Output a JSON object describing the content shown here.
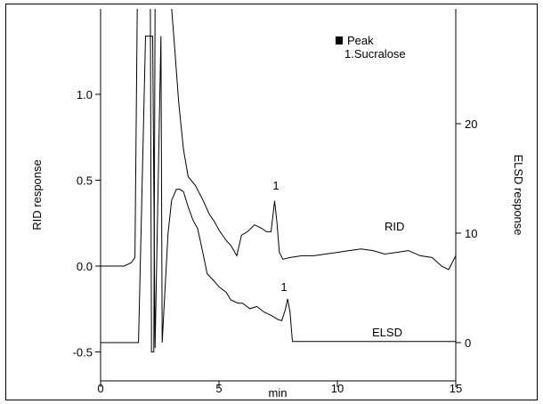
{
  "chart_data": {
    "type": "line",
    "x_axis": {
      "label": "min",
      "range": [
        0,
        15
      ],
      "ticks": [
        0,
        5,
        10,
        15
      ],
      "tick_labels": [
        "0",
        "5",
        "10",
        "15"
      ]
    },
    "y_left": {
      "label": "RID response",
      "range": [
        -0.6,
        1.4
      ],
      "ticks": [
        -0.5,
        0.0,
        0.5,
        1.0
      ],
      "tick_labels": [
        "-0.5",
        "0.0",
        "0.5",
        "1.0"
      ]
    },
    "y_right": {
      "label": "ELSD response",
      "ticks": [
        0,
        10,
        20
      ],
      "tick_labels": [
        "0",
        "10",
        "20"
      ]
    },
    "legend": {
      "title": "Peak",
      "entries": [
        "1.Sucralose"
      ]
    },
    "series": [
      {
        "name": "RID",
        "axis": "left",
        "x": [
          0,
          1.0,
          1.3,
          1.45,
          1.55,
          1.65,
          2.0,
          2.1,
          2.15,
          2.25,
          2.3,
          2.5,
          2.65,
          3.0,
          3.1,
          3.3,
          3.5,
          3.7,
          4.0,
          4.3,
          4.6,
          4.8,
          5.0,
          5.3,
          5.5,
          5.75,
          5.95,
          6.2,
          6.5,
          6.8,
          7.0,
          7.2,
          7.35,
          7.45,
          7.55,
          7.7,
          8.0,
          8.5,
          9.0,
          9.5,
          10.0,
          10.5,
          11.0,
          11.5,
          12.0,
          12.5,
          13.0,
          13.5,
          14.0,
          14.4,
          14.7,
          15.0
        ],
        "y": [
          0.0,
          0.0,
          0.02,
          0.05,
          1.5,
          1.5,
          1.5,
          1.5,
          -0.5,
          -0.5,
          1.5,
          1.5,
          1.5,
          1.5,
          1.32,
          0.95,
          0.68,
          0.52,
          0.47,
          0.39,
          0.3,
          0.26,
          0.21,
          0.15,
          0.12,
          0.06,
          0.18,
          0.2,
          0.24,
          0.22,
          0.2,
          0.2,
          0.38,
          0.25,
          0.08,
          0.04,
          0.05,
          0.06,
          0.06,
          0.07,
          0.08,
          0.09,
          0.1,
          0.09,
          0.07,
          0.08,
          0.09,
          0.06,
          0.05,
          0.0,
          -0.02,
          0.06
        ]
      },
      {
        "name": "ELSD",
        "axis": "right",
        "x": [
          0,
          1.0,
          1.5,
          1.6,
          1.9,
          2.0,
          2.05,
          2.2,
          2.3,
          2.55,
          2.6,
          2.7,
          2.85,
          3.0,
          3.2,
          3.35,
          3.5,
          3.7,
          3.9,
          4.1,
          4.3,
          4.5,
          4.8,
          5.0,
          5.3,
          5.5,
          5.8,
          6.0,
          6.3,
          6.6,
          6.9,
          7.2,
          7.5,
          7.65,
          7.8,
          7.9,
          8.0,
          8.1,
          8.5,
          9.0,
          10.0,
          11.0,
          12.0,
          13.0,
          14.0,
          15.0
        ],
        "y": [
          0,
          0,
          0,
          0,
          28,
          28,
          28,
          28,
          -0.5,
          28,
          0,
          4,
          10,
          13,
          14,
          14,
          13.8,
          12.4,
          11.2,
          10.4,
          8.4,
          6.3,
          5.6,
          5.1,
          4.6,
          3.9,
          3.6,
          3.6,
          3.1,
          3.3,
          2.8,
          2.5,
          2.1,
          2.0,
          3.0,
          4.0,
          2.8,
          0.1,
          0.1,
          0.1,
          0.1,
          0.1,
          0.1,
          0.1,
          0.1,
          0.1
        ]
      }
    ],
    "annotations": [
      {
        "text": "1",
        "x": 7.35,
        "series": "RID"
      },
      {
        "text": "1",
        "x": 7.8,
        "series": "ELSD"
      },
      {
        "text": "RID",
        "near_series": "RID"
      },
      {
        "text": "ELSD",
        "near_series": "ELSD"
      }
    ]
  },
  "colors": {
    "line": "#000000",
    "background": "#ffffff"
  }
}
